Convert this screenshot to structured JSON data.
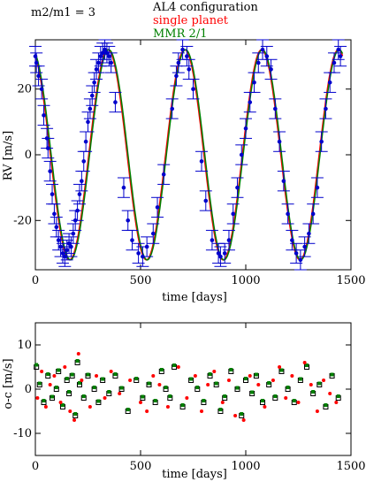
{
  "chart_data": [
    {
      "type": "line",
      "annotation": "m2/m1 = 3",
      "legend": {
        "placement": "top-center",
        "entries": [
          {
            "label": "AL4 configuration",
            "color": "#000000"
          },
          {
            "label": "single planet",
            "color": "#ff0000"
          },
          {
            "label": "MMR 2/1",
            "color": "#008000"
          }
        ]
      },
      "xlabel": "time [days]",
      "ylabel": "RV [m/s]",
      "xlim": [
        0,
        1500
      ],
      "ylim": [
        -35,
        35
      ],
      "xticks": [
        0,
        500,
        1000,
        1500
      ],
      "yticks": [
        -20,
        0,
        20
      ],
      "model": {
        "period": 365,
        "amplitude": 32,
        "phase_peak_day": 345
      },
      "series": [
        {
          "name": "single planet",
          "color": "#ff0000"
        },
        {
          "name": "MMR 2/1",
          "color": "#008000"
        },
        {
          "name": "",
          "color": "#0000cc",
          "x": [
            0,
            5,
            15,
            30,
            40,
            55,
            60,
            70,
            80,
            90,
            100,
            110,
            120,
            130,
            140,
            150,
            160,
            170,
            180,
            190,
            200,
            210,
            220,
            230,
            240,
            250,
            260,
            270,
            280,
            290,
            300,
            310,
            320,
            330,
            340,
            350,
            360,
            380,
            420,
            440,
            460,
            490,
            510,
            530,
            560,
            580,
            610,
            650,
            670,
            680,
            700,
            720,
            730,
            750,
            790,
            810,
            840,
            870,
            880,
            900,
            920,
            940,
            960,
            980,
            1000,
            1020,
            1040,
            1060,
            1080,
            1100,
            1120,
            1140,
            1160,
            1180,
            1200,
            1220,
            1240,
            1260,
            1280,
            1300,
            1320,
            1340,
            1360,
            1380,
            1400,
            1420,
            1440,
            1450
          ],
          "y": [
            30,
            28,
            24,
            20,
            12,
            5,
            2,
            -5,
            -12,
            -18,
            -22,
            -26,
            -28,
            -30,
            -31,
            -29,
            -27,
            -28,
            -24,
            -20,
            -17,
            -12,
            -8,
            -2,
            4,
            10,
            14,
            18,
            22,
            26,
            28,
            30,
            31,
            32,
            31,
            30,
            28,
            16,
            -10,
            -20,
            -26,
            -30,
            -31,
            -28,
            -24,
            -16,
            -6,
            14,
            24,
            28,
            32,
            30,
            26,
            20,
            -2,
            -14,
            -26,
            -30,
            -31,
            -30,
            -26,
            -18,
            -10,
            0,
            8,
            16,
            22,
            28,
            32,
            30,
            26,
            14,
            4,
            -8,
            -18,
            -26,
            -30,
            -32,
            -28,
            -24,
            -18,
            -10,
            4,
            14,
            22,
            28,
            32,
            30
          ],
          "yerr": 3
        }
      ]
    },
    {
      "type": "scatter",
      "xlabel": "time [days]",
      "ylabel": "o-c [m/s]",
      "xlim": [
        0,
        1500
      ],
      "ylim": [
        -15,
        15
      ],
      "xticks": [
        0,
        500,
        1000,
        1500
      ],
      "yticks": [
        -10,
        0,
        10
      ],
      "series": [
        {
          "name": "AL4 configuration",
          "color": "#000000",
          "x": [
            5,
            20,
            40,
            60,
            80,
            100,
            110,
            130,
            150,
            160,
            175,
            190,
            200,
            210,
            230,
            250,
            280,
            300,
            320,
            350,
            380,
            410,
            440,
            480,
            510,
            540,
            570,
            600,
            620,
            640,
            660,
            700,
            740,
            770,
            800,
            830,
            860,
            880,
            900,
            930,
            960,
            980,
            1000,
            1030,
            1050,
            1080,
            1110,
            1140,
            1170,
            1200,
            1230,
            1260,
            1290,
            1320,
            1350,
            1380,
            1410,
            1440
          ],
          "y": [
            5,
            1,
            -3,
            3,
            -2,
            0,
            4,
            -4,
            2,
            -1,
            3,
            -6,
            6,
            1,
            -2,
            3,
            0,
            -3,
            2,
            -1,
            3,
            0,
            -5,
            2,
            -2,
            1,
            -3,
            4,
            0,
            -2,
            5,
            -4,
            2,
            0,
            -3,
            3,
            1,
            -5,
            -2,
            4,
            0,
            -6,
            2,
            -1,
            3,
            -3,
            1,
            -2,
            4,
            0,
            -3,
            2,
            5,
            -1,
            1,
            -4,
            3,
            -2
          ]
        },
        {
          "name": "MMR 2/1",
          "color": "#008000",
          "x": [
            5,
            20,
            40,
            60,
            80,
            100,
            110,
            130,
            150,
            160,
            175,
            190,
            200,
            210,
            230,
            250,
            280,
            300,
            320,
            350,
            380,
            410,
            440,
            480,
            510,
            540,
            570,
            600,
            620,
            640,
            660,
            700,
            740,
            770,
            800,
            830,
            860,
            880,
            900,
            930,
            960,
            980,
            1000,
            1030,
            1050,
            1080,
            1110,
            1140,
            1170,
            1200,
            1230,
            1260,
            1290,
            1320,
            1350,
            1380,
            1410,
            1440
          ],
          "y": [
            5.5,
            1.3,
            -2.6,
            3.4,
            -1.7,
            0.4,
            4.3,
            -3.6,
            2.4,
            -0.6,
            3.3,
            -5.6,
            6.4,
            1.4,
            -1.6,
            3.3,
            0.4,
            -2.7,
            2.3,
            -0.6,
            3.4,
            0.3,
            -4.6,
            2.4,
            -1.7,
            1.3,
            -2.6,
            4.4,
            0.4,
            -1.6,
            5.4,
            -3.6,
            2.3,
            0.4,
            -2.6,
            3.4,
            1.3,
            -4.6,
            -1.6,
            4.4,
            0.3,
            -5.6,
            2.4,
            -0.7,
            3.3,
            -2.6,
            1.4,
            -1.6,
            4.3,
            0.4,
            -2.6,
            2.3,
            5.4,
            -0.6,
            1.3,
            -3.6,
            3.3,
            -1.6
          ]
        },
        {
          "name": "single planet",
          "color": "#ff0000",
          "x": [
            10,
            30,
            50,
            70,
            90,
            120,
            140,
            165,
            185,
            205,
            220,
            260,
            290,
            330,
            360,
            400,
            450,
            500,
            530,
            560,
            590,
            630,
            680,
            720,
            760,
            790,
            820,
            850,
            890,
            920,
            950,
            990,
            1020,
            1060,
            1090,
            1130,
            1160,
            1190,
            1220,
            1250,
            1280,
            1310,
            1340,
            1370,
            1400,
            1430
          ],
          "y": [
            -2,
            4,
            -4,
            1,
            3,
            -3,
            5,
            -5,
            -7,
            8,
            2,
            -4,
            3,
            -2,
            4,
            -1,
            2,
            -3,
            -5,
            3,
            1,
            -4,
            5,
            -2,
            3,
            -5,
            1,
            4,
            -3,
            2,
            -6,
            -7,
            3,
            1,
            -4,
            2,
            5,
            -2,
            3,
            -3,
            6,
            1,
            -5,
            2,
            -1,
            -3
          ]
        }
      ]
    }
  ]
}
